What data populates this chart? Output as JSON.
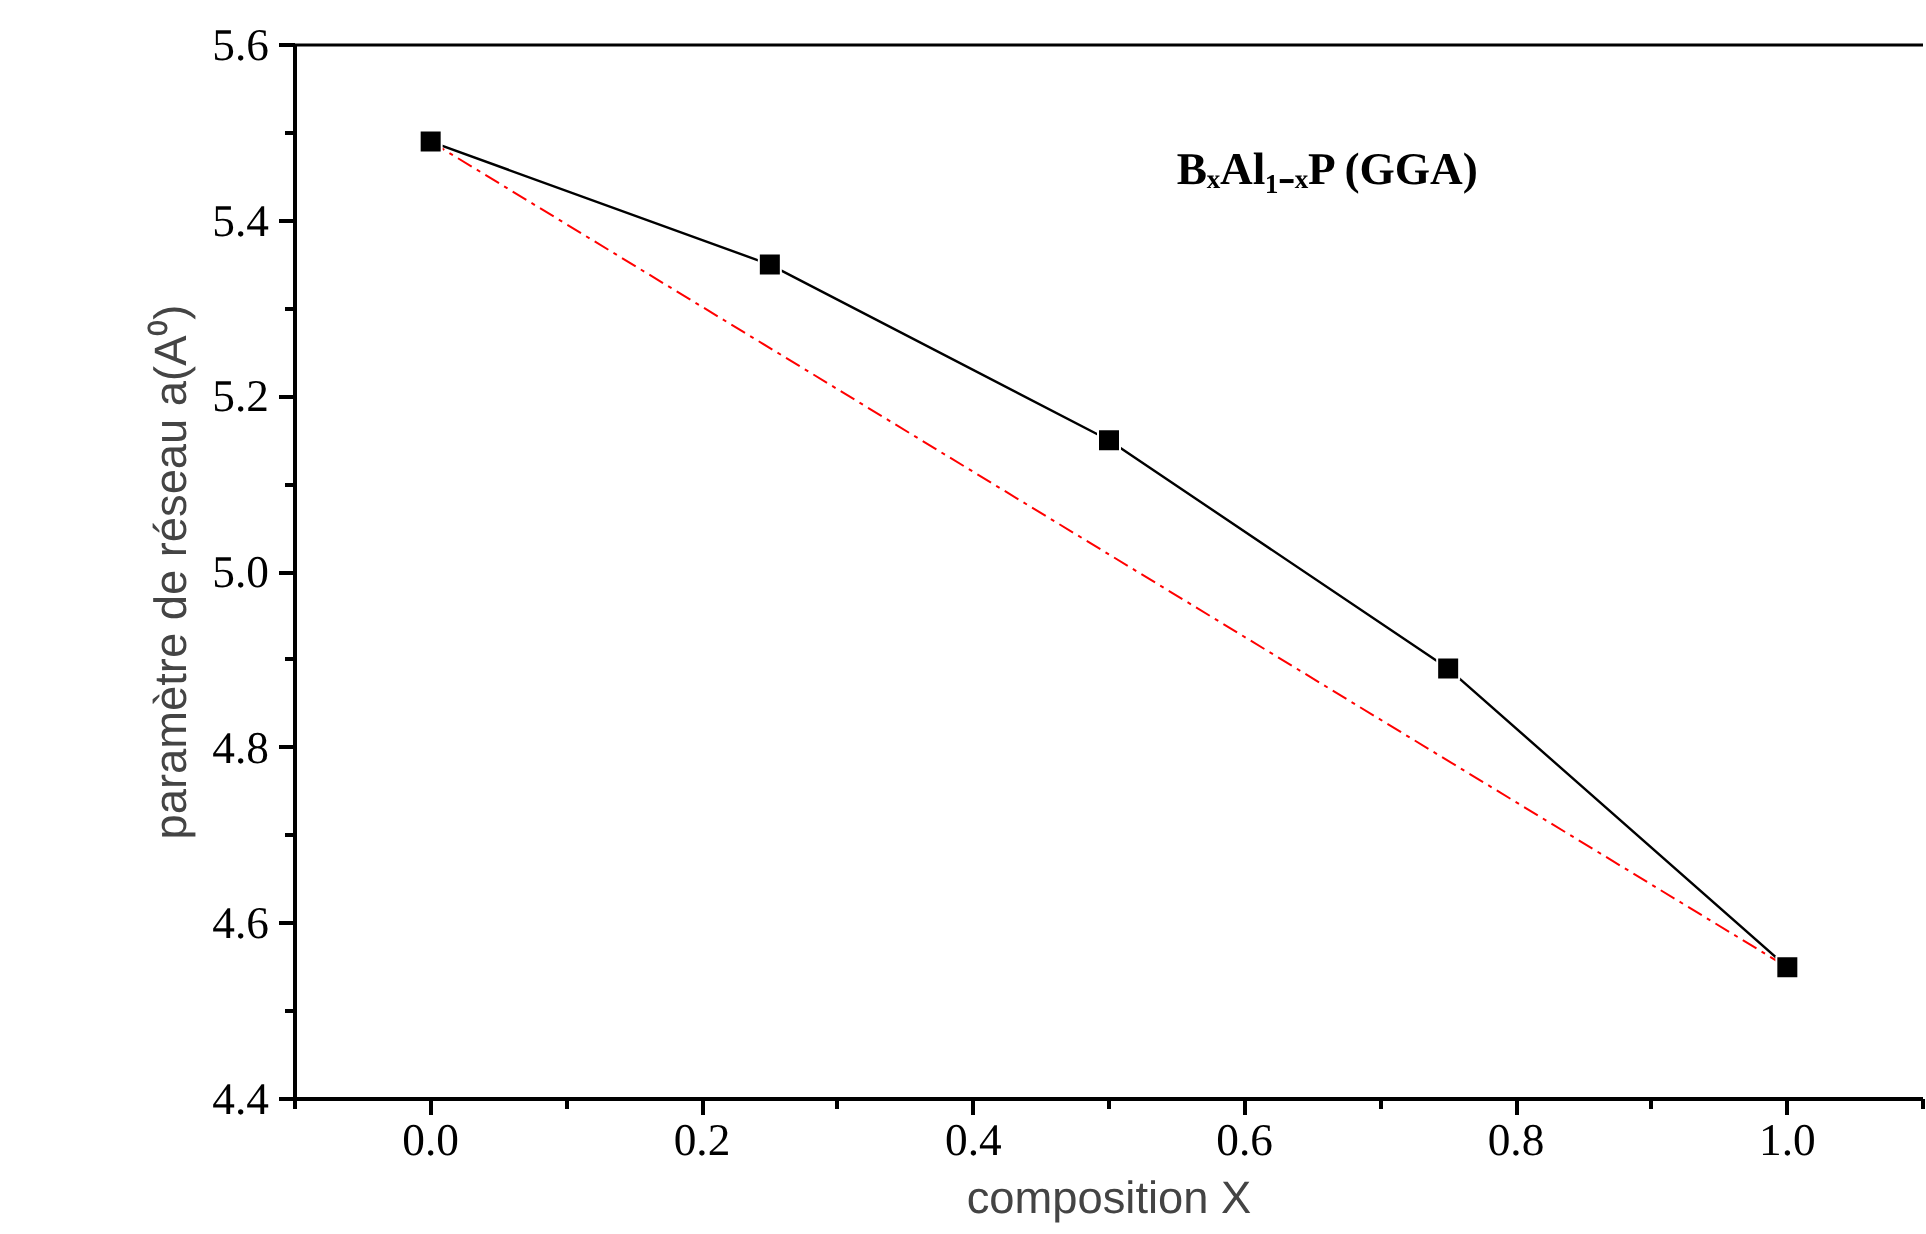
{
  "chart_data": {
    "type": "line",
    "xlabel": "composition X",
    "ylabel": "paramètre de réseau a(A⁰)",
    "annotations": [
      "BₓAl₁₋ₓP (GGA)"
    ],
    "xlim": [
      -0.1,
      1.1
    ],
    "xticks": [
      {
        "value": 0,
        "label": "0.0"
      },
      {
        "value": 0.2,
        "label": "0.2"
      },
      {
        "value": 0.4,
        "label": "0.4"
      },
      {
        "value": 0.6,
        "label": "0.6"
      },
      {
        "value": 0.8,
        "label": "0.8"
      },
      {
        "value": 1,
        "label": "1.0"
      }
    ],
    "ylim": [
      4.4,
      5.6
    ],
    "yticks": [
      {
        "value": 4.4,
        "label": "4.4"
      },
      {
        "value": 4.6,
        "label": "4.6"
      },
      {
        "value": 4.8,
        "label": "4.8"
      },
      {
        "value": 5.0,
        "label": "5.0"
      },
      {
        "value": 5.2,
        "label": "5.2"
      },
      {
        "value": 5.4,
        "label": "5.4"
      },
      {
        "value": 5.6,
        "label": "5.6"
      }
    ],
    "x": [
      0,
      0.25,
      0.5,
      0.75,
      1
    ],
    "series": [
      {
        "color": "#000000",
        "values": [
          5.49,
          5.35,
          5.15,
          4.89,
          4.55
        ],
        "marker": "square",
        "line_style": "solid"
      },
      {
        "color": "#ff0000",
        "x": [
          0,
          1
        ],
        "values": [
          5.49,
          4.55
        ],
        "marker": "none",
        "line_style": "dashed"
      }
    ],
    "grid": false
  }
}
